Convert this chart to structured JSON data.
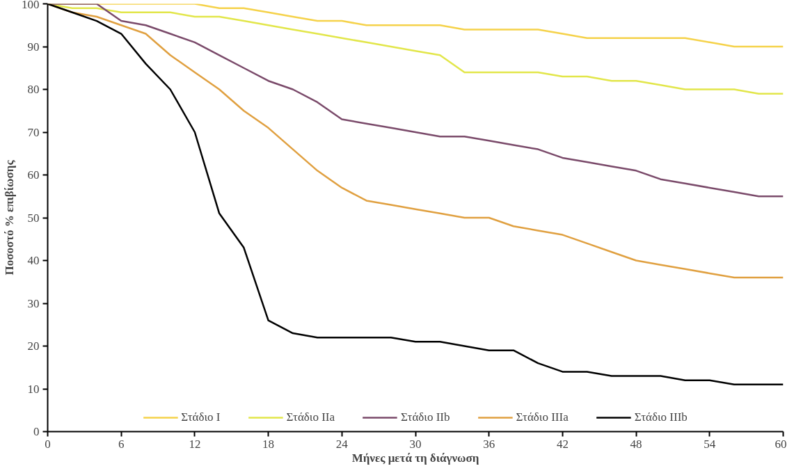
{
  "chart_data": {
    "type": "line",
    "xlabel": "Μήνες μετά τη διάγνωση",
    "ylabel": "Ποσοστό % επιβίωσης",
    "x": [
      0,
      2,
      4,
      6,
      8,
      10,
      12,
      14,
      16,
      18,
      20,
      22,
      24,
      26,
      28,
      30,
      32,
      34,
      36,
      38,
      40,
      42,
      44,
      46,
      48,
      50,
      52,
      54,
      56,
      58,
      60
    ],
    "xlim": [
      0,
      60
    ],
    "ylim": [
      0,
      100
    ],
    "xticks": [
      0,
      6,
      12,
      18,
      24,
      30,
      36,
      42,
      48,
      54,
      60
    ],
    "yticks": [
      0,
      10,
      20,
      30,
      40,
      50,
      60,
      70,
      80,
      90,
      100
    ],
    "grid": false,
    "legend": "bottom",
    "marker": "none",
    "line_style": "solid",
    "series": [
      {
        "name": "Στάδιο I",
        "color": "#f5d24a",
        "values": [
          100,
          100,
          100,
          100,
          100,
          100,
          100,
          99,
          99,
          98,
          97,
          96,
          96,
          95,
          95,
          95,
          95,
          94,
          94,
          94,
          94,
          93,
          92,
          92,
          92,
          92,
          92,
          91,
          90,
          90,
          90
        ]
      },
      {
        "name": "Στάδιο IIa",
        "color": "#e2e64a",
        "values": [
          100,
          99,
          99,
          98,
          98,
          98,
          97,
          97,
          96,
          95,
          94,
          93,
          92,
          91,
          90,
          89,
          88,
          84,
          84,
          84,
          84,
          83,
          83,
          82,
          82,
          81,
          80,
          80,
          80,
          79,
          79
        ]
      },
      {
        "name": "Στάδιο IIb",
        "color": "#7a4a6a",
        "values": [
          100,
          100,
          100,
          96,
          95,
          93,
          91,
          88,
          85,
          82,
          80,
          77,
          73,
          72,
          71,
          70,
          69,
          69,
          68,
          67,
          66,
          64,
          63,
          62,
          61,
          59,
          58,
          57,
          56,
          55,
          55
        ]
      },
      {
        "name": "Στάδιο IIIa",
        "color": "#e0a040",
        "values": [
          100,
          98,
          97,
          95,
          93,
          88,
          84,
          80,
          75,
          71,
          66,
          61,
          57,
          54,
          53,
          52,
          51,
          50,
          50,
          48,
          47,
          46,
          44,
          42,
          40,
          39,
          38,
          37,
          36,
          36,
          36
        ]
      },
      {
        "name": "Στάδιο IIIb",
        "color": "#000000",
        "values": [
          100,
          98,
          96,
          93,
          86,
          80,
          70,
          51,
          43,
          26,
          23,
          22,
          22,
          22,
          22,
          21,
          21,
          20,
          19,
          19,
          16,
          14,
          14,
          13,
          13,
          13,
          12,
          12,
          11,
          11,
          11
        ]
      }
    ]
  }
}
